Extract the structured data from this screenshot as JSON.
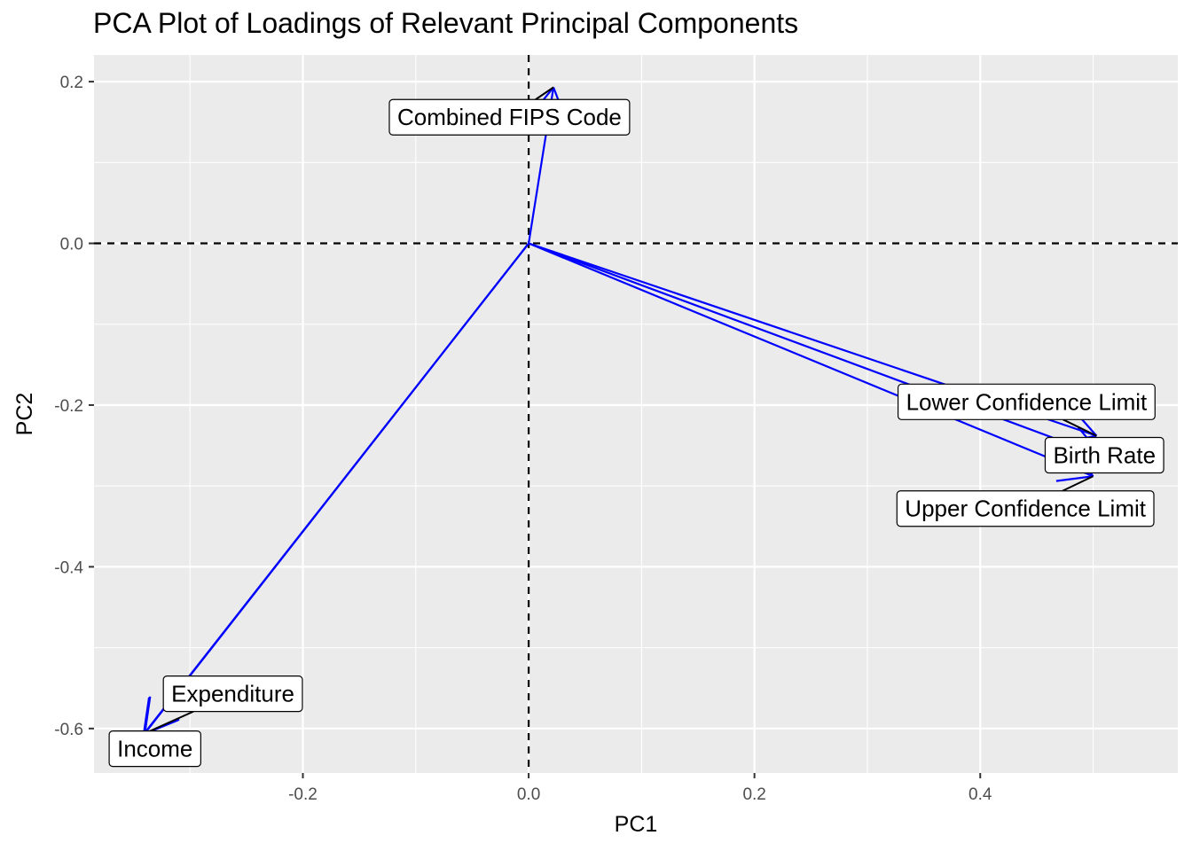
{
  "chart_data": {
    "type": "scatter",
    "title": "PCA Plot of Loadings of Relevant Principal Components",
    "xlabel": "PC1",
    "ylabel": "PC2",
    "xlim": [
      -0.385,
      0.575
    ],
    "ylim": [
      -0.655,
      0.233
    ],
    "x_ticks": [
      -0.2,
      0.0,
      0.2,
      0.4
    ],
    "x_tick_labels": [
      "-0.2",
      "0.0",
      "0.2",
      "0.4"
    ],
    "y_ticks": [
      -0.6,
      -0.4,
      -0.2,
      0.0,
      0.2
    ],
    "y_tick_labels": [
      "-0.6",
      "-0.4",
      "-0.2",
      "0.0",
      "0.2"
    ],
    "grid": true,
    "reference_lines": [
      {
        "axis": "x",
        "value": 0,
        "style": "dashed"
      },
      {
        "axis": "y",
        "value": 0,
        "style": "dashed"
      }
    ],
    "arrow_color": "#0000ff",
    "loadings": [
      {
        "label": "Combined FIPS Code",
        "x": 0.022,
        "y": 0.193,
        "label_x": -0.017,
        "label_y": 0.156
      },
      {
        "label": "Lower Confidence Limit",
        "x": 0.503,
        "y": -0.238,
        "label_x": 0.441,
        "label_y": -0.196
      },
      {
        "label": "Birth Rate",
        "x": 0.508,
        "y": -0.263,
        "label_x": 0.51,
        "label_y": -0.262
      },
      {
        "label": "Upper Confidence Limit",
        "x": 0.5,
        "y": -0.288,
        "label_x": 0.44,
        "label_y": -0.328
      },
      {
        "label": "Expenditure",
        "x": -0.34,
        "y": -0.606,
        "label_x": -0.262,
        "label_y": -0.557
      },
      {
        "label": "Income",
        "x": -0.341,
        "y": -0.607,
        "label_x": -0.331,
        "label_y": -0.625
      }
    ]
  },
  "colors": {
    "panel_background": "#ebebeb",
    "grid": "#ffffff",
    "arrow": "#0000ff",
    "text": "#000000",
    "tick_text": "#4d4d4d"
  }
}
